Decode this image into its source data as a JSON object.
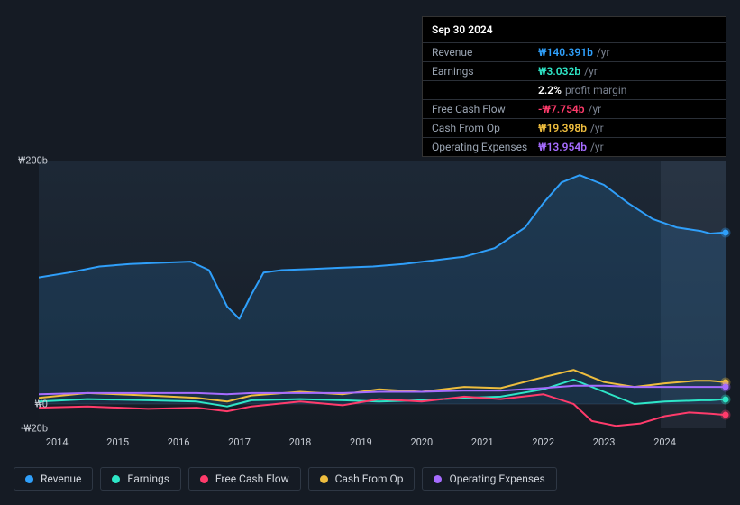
{
  "tooltip": {
    "date": "Sep 30 2024",
    "rows": [
      {
        "label": "Revenue",
        "value": "₩140.391b",
        "suffix": "/yr",
        "color": "#2f9ffa"
      },
      {
        "label": "Earnings",
        "value": "₩3.032b",
        "suffix": "/yr",
        "color": "#2ee6c7",
        "sub_value": "2.2%",
        "sub_text": "profit margin"
      },
      {
        "label": "Free Cash Flow",
        "value": "-₩7.754b",
        "suffix": "/yr",
        "color": "#ff3b6b"
      },
      {
        "label": "Cash From Op",
        "value": "₩19.398b",
        "suffix": "/yr",
        "color": "#eebd3e"
      },
      {
        "label": "Operating Expenses",
        "value": "₩13.954b",
        "suffix": "/yr",
        "color": "#a66cff"
      }
    ]
  },
  "chart": {
    "type": "line",
    "background_color": "#151b24",
    "panel_gradient": [
      "rgba(30,42,56,0.9)",
      "rgba(21,27,36,0.6)"
    ],
    "grid_color": "#2a3240",
    "text_color": "#c7ccd4",
    "line_width": 2,
    "ylim": [
      -20,
      200
    ],
    "ylabels": [
      {
        "v": 200,
        "text": "₩200b"
      },
      {
        "v": 0,
        "text": "₩0"
      },
      {
        "v": -20,
        "text": "-₩20b"
      }
    ],
    "x_years": [
      2014,
      2015,
      2016,
      2017,
      2018,
      2019,
      2020,
      2021,
      2022,
      2023,
      2024
    ],
    "x_start": 2013.7,
    "x_end": 2025.0,
    "series": [
      {
        "name": "Revenue",
        "color": "#2f9ffa",
        "fill": "rgba(47,159,250,0.15)",
        "data": [
          [
            2013.7,
            104
          ],
          [
            2014.2,
            108
          ],
          [
            2014.7,
            113
          ],
          [
            2015.2,
            115
          ],
          [
            2015.7,
            116
          ],
          [
            2016.2,
            117
          ],
          [
            2016.5,
            110
          ],
          [
            2016.8,
            80
          ],
          [
            2017.0,
            70
          ],
          [
            2017.2,
            90
          ],
          [
            2017.4,
            108
          ],
          [
            2017.7,
            110
          ],
          [
            2018.2,
            111
          ],
          [
            2018.7,
            112
          ],
          [
            2019.2,
            113
          ],
          [
            2019.7,
            115
          ],
          [
            2020.2,
            118
          ],
          [
            2020.7,
            121
          ],
          [
            2021.2,
            128
          ],
          [
            2021.7,
            145
          ],
          [
            2022.0,
            165
          ],
          [
            2022.3,
            182
          ],
          [
            2022.6,
            188
          ],
          [
            2023.0,
            180
          ],
          [
            2023.4,
            165
          ],
          [
            2023.8,
            152
          ],
          [
            2024.2,
            145
          ],
          [
            2024.6,
            142
          ],
          [
            2024.75,
            140
          ],
          [
            2025.0,
            141
          ]
        ]
      },
      {
        "name": "Earnings",
        "color": "#2ee6c7",
        "data": [
          [
            2013.7,
            2
          ],
          [
            2014.5,
            4
          ],
          [
            2015.5,
            3
          ],
          [
            2016.3,
            2
          ],
          [
            2016.8,
            -2
          ],
          [
            2017.2,
            3
          ],
          [
            2018.0,
            4
          ],
          [
            2018.7,
            3
          ],
          [
            2019.3,
            2
          ],
          [
            2020.0,
            3
          ],
          [
            2020.7,
            5
          ],
          [
            2021.3,
            6
          ],
          [
            2022.0,
            12
          ],
          [
            2022.5,
            20
          ],
          [
            2023.0,
            10
          ],
          [
            2023.5,
            0
          ],
          [
            2024.0,
            2
          ],
          [
            2024.6,
            3
          ],
          [
            2024.75,
            3
          ],
          [
            2025.0,
            4
          ]
        ]
      },
      {
        "name": "Free Cash Flow",
        "color": "#ff3b6b",
        "data": [
          [
            2013.7,
            -3
          ],
          [
            2014.5,
            -2
          ],
          [
            2015.5,
            -4
          ],
          [
            2016.3,
            -3
          ],
          [
            2016.8,
            -6
          ],
          [
            2017.2,
            -2
          ],
          [
            2018.0,
            2
          ],
          [
            2018.7,
            -1
          ],
          [
            2019.3,
            4
          ],
          [
            2020.0,
            2
          ],
          [
            2020.7,
            6
          ],
          [
            2021.3,
            4
          ],
          [
            2022.0,
            8
          ],
          [
            2022.5,
            0
          ],
          [
            2022.8,
            -14
          ],
          [
            2023.2,
            -18
          ],
          [
            2023.6,
            -16
          ],
          [
            2024.0,
            -10
          ],
          [
            2024.4,
            -7
          ],
          [
            2024.75,
            -8
          ],
          [
            2025.0,
            -9
          ]
        ]
      },
      {
        "name": "Cash From Op",
        "color": "#eebd3e",
        "data": [
          [
            2013.7,
            5
          ],
          [
            2014.5,
            9
          ],
          [
            2015.5,
            7
          ],
          [
            2016.3,
            5
          ],
          [
            2016.8,
            2
          ],
          [
            2017.2,
            7
          ],
          [
            2018.0,
            10
          ],
          [
            2018.7,
            8
          ],
          [
            2019.3,
            12
          ],
          [
            2020.0,
            10
          ],
          [
            2020.7,
            14
          ],
          [
            2021.3,
            13
          ],
          [
            2022.0,
            22
          ],
          [
            2022.5,
            28
          ],
          [
            2023.0,
            18
          ],
          [
            2023.5,
            14
          ],
          [
            2024.0,
            17
          ],
          [
            2024.5,
            19
          ],
          [
            2024.75,
            19
          ],
          [
            2025.0,
            18
          ]
        ]
      },
      {
        "name": "Operating Expenses",
        "color": "#a66cff",
        "data": [
          [
            2013.7,
            8
          ],
          [
            2014.5,
            9
          ],
          [
            2015.5,
            9
          ],
          [
            2016.3,
            9
          ],
          [
            2016.8,
            8
          ],
          [
            2017.2,
            9
          ],
          [
            2018.0,
            9
          ],
          [
            2018.7,
            9
          ],
          [
            2019.3,
            10
          ],
          [
            2020.0,
            10
          ],
          [
            2020.7,
            11
          ],
          [
            2021.3,
            11
          ],
          [
            2022.0,
            13
          ],
          [
            2022.5,
            15
          ],
          [
            2023.0,
            15
          ],
          [
            2023.5,
            14
          ],
          [
            2024.0,
            14
          ],
          [
            2024.5,
            14
          ],
          [
            2024.75,
            14
          ],
          [
            2025.0,
            14
          ]
        ]
      }
    ]
  },
  "legend": [
    {
      "label": "Revenue",
      "color": "#2f9ffa"
    },
    {
      "label": "Earnings",
      "color": "#2ee6c7"
    },
    {
      "label": "Free Cash Flow",
      "color": "#ff3b6b"
    },
    {
      "label": "Cash From Op",
      "color": "#eebd3e"
    },
    {
      "label": "Operating Expenses",
      "color": "#a66cff"
    }
  ]
}
